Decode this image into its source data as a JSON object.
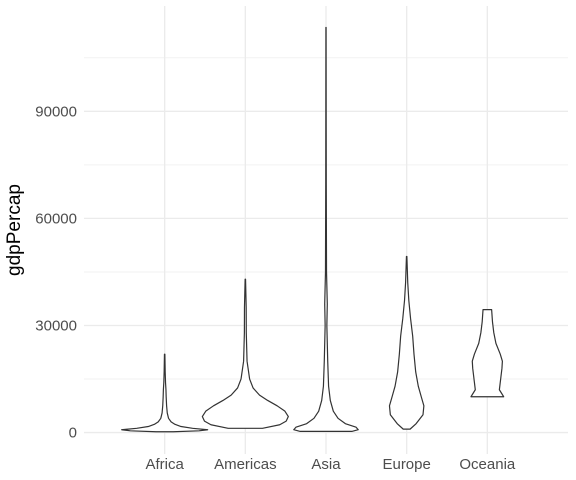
{
  "chart_data": {
    "type": "violin",
    "title": "",
    "xlabel": "",
    "ylabel": "gdpPercap",
    "ylim": [
      -6000,
      119500
    ],
    "grid": true,
    "yticks": [
      0,
      30000,
      60000,
      90000
    ],
    "ytick_labels": [
      "0",
      "30000",
      "60000",
      "90000"
    ],
    "categories": [
      "Africa",
      "Americas",
      "Asia",
      "Europe",
      "Oceania"
    ],
    "series": [
      {
        "category": "Africa",
        "min": 240,
        "max": 21950,
        "profile": [
          [
            240,
            0.2
          ],
          [
            500,
            0.8
          ],
          [
            800,
            1.0
          ],
          [
            1200,
            0.65
          ],
          [
            1700,
            0.38
          ],
          [
            2300,
            0.24
          ],
          [
            3000,
            0.15
          ],
          [
            4000,
            0.09
          ],
          [
            5500,
            0.06
          ],
          [
            7500,
            0.045
          ],
          [
            10000,
            0.035
          ],
          [
            12000,
            0.03
          ],
          [
            14000,
            0.02
          ],
          [
            17000,
            0.012
          ],
          [
            21950,
            0.005
          ]
        ]
      },
      {
        "category": "Americas",
        "min": 1200,
        "max": 42950,
        "profile": [
          [
            1200,
            0.4
          ],
          [
            2200,
            0.8
          ],
          [
            3200,
            0.95
          ],
          [
            4500,
            1.0
          ],
          [
            6000,
            0.92
          ],
          [
            7500,
            0.74
          ],
          [
            9000,
            0.52
          ],
          [
            10500,
            0.33
          ],
          [
            12500,
            0.18
          ],
          [
            15000,
            0.1
          ],
          [
            20000,
            0.04
          ],
          [
            28000,
            0.022
          ],
          [
            35000,
            0.02
          ],
          [
            42950,
            0.005
          ]
        ]
      },
      {
        "category": "Asia",
        "min": 330,
        "max": 113500,
        "profile": [
          [
            330,
            0.6
          ],
          [
            800,
            0.75
          ],
          [
            1500,
            0.7
          ],
          [
            2500,
            0.45
          ],
          [
            4000,
            0.28
          ],
          [
            6000,
            0.17
          ],
          [
            9000,
            0.1
          ],
          [
            13000,
            0.06
          ],
          [
            20000,
            0.04
          ],
          [
            30000,
            0.02
          ],
          [
            36000,
            0.03
          ],
          [
            45000,
            0.012
          ],
          [
            70000,
            0.006
          ],
          [
            90000,
            0.004
          ],
          [
            113500,
            0.002
          ]
        ]
      },
      {
        "category": "Europe",
        "min": 970,
        "max": 49350,
        "profile": [
          [
            970,
            0.08
          ],
          [
            2500,
            0.22
          ],
          [
            5000,
            0.38
          ],
          [
            7500,
            0.4
          ],
          [
            10000,
            0.34
          ],
          [
            13000,
            0.27
          ],
          [
            17000,
            0.21
          ],
          [
            22000,
            0.17
          ],
          [
            27000,
            0.14
          ],
          [
            32000,
            0.09
          ],
          [
            37000,
            0.05
          ],
          [
            42000,
            0.025
          ],
          [
            49350,
            0.005
          ]
        ]
      },
      {
        "category": "Oceania",
        "min": 10040,
        "max": 34440,
        "profile": [
          [
            10040,
            0.38
          ],
          [
            12000,
            0.28
          ],
          [
            14000,
            0.3
          ],
          [
            16000,
            0.32
          ],
          [
            18000,
            0.34
          ],
          [
            20000,
            0.35
          ],
          [
            22000,
            0.3
          ],
          [
            25000,
            0.2
          ],
          [
            28000,
            0.15
          ],
          [
            31000,
            0.12
          ],
          [
            34440,
            0.1
          ]
        ]
      }
    ]
  }
}
